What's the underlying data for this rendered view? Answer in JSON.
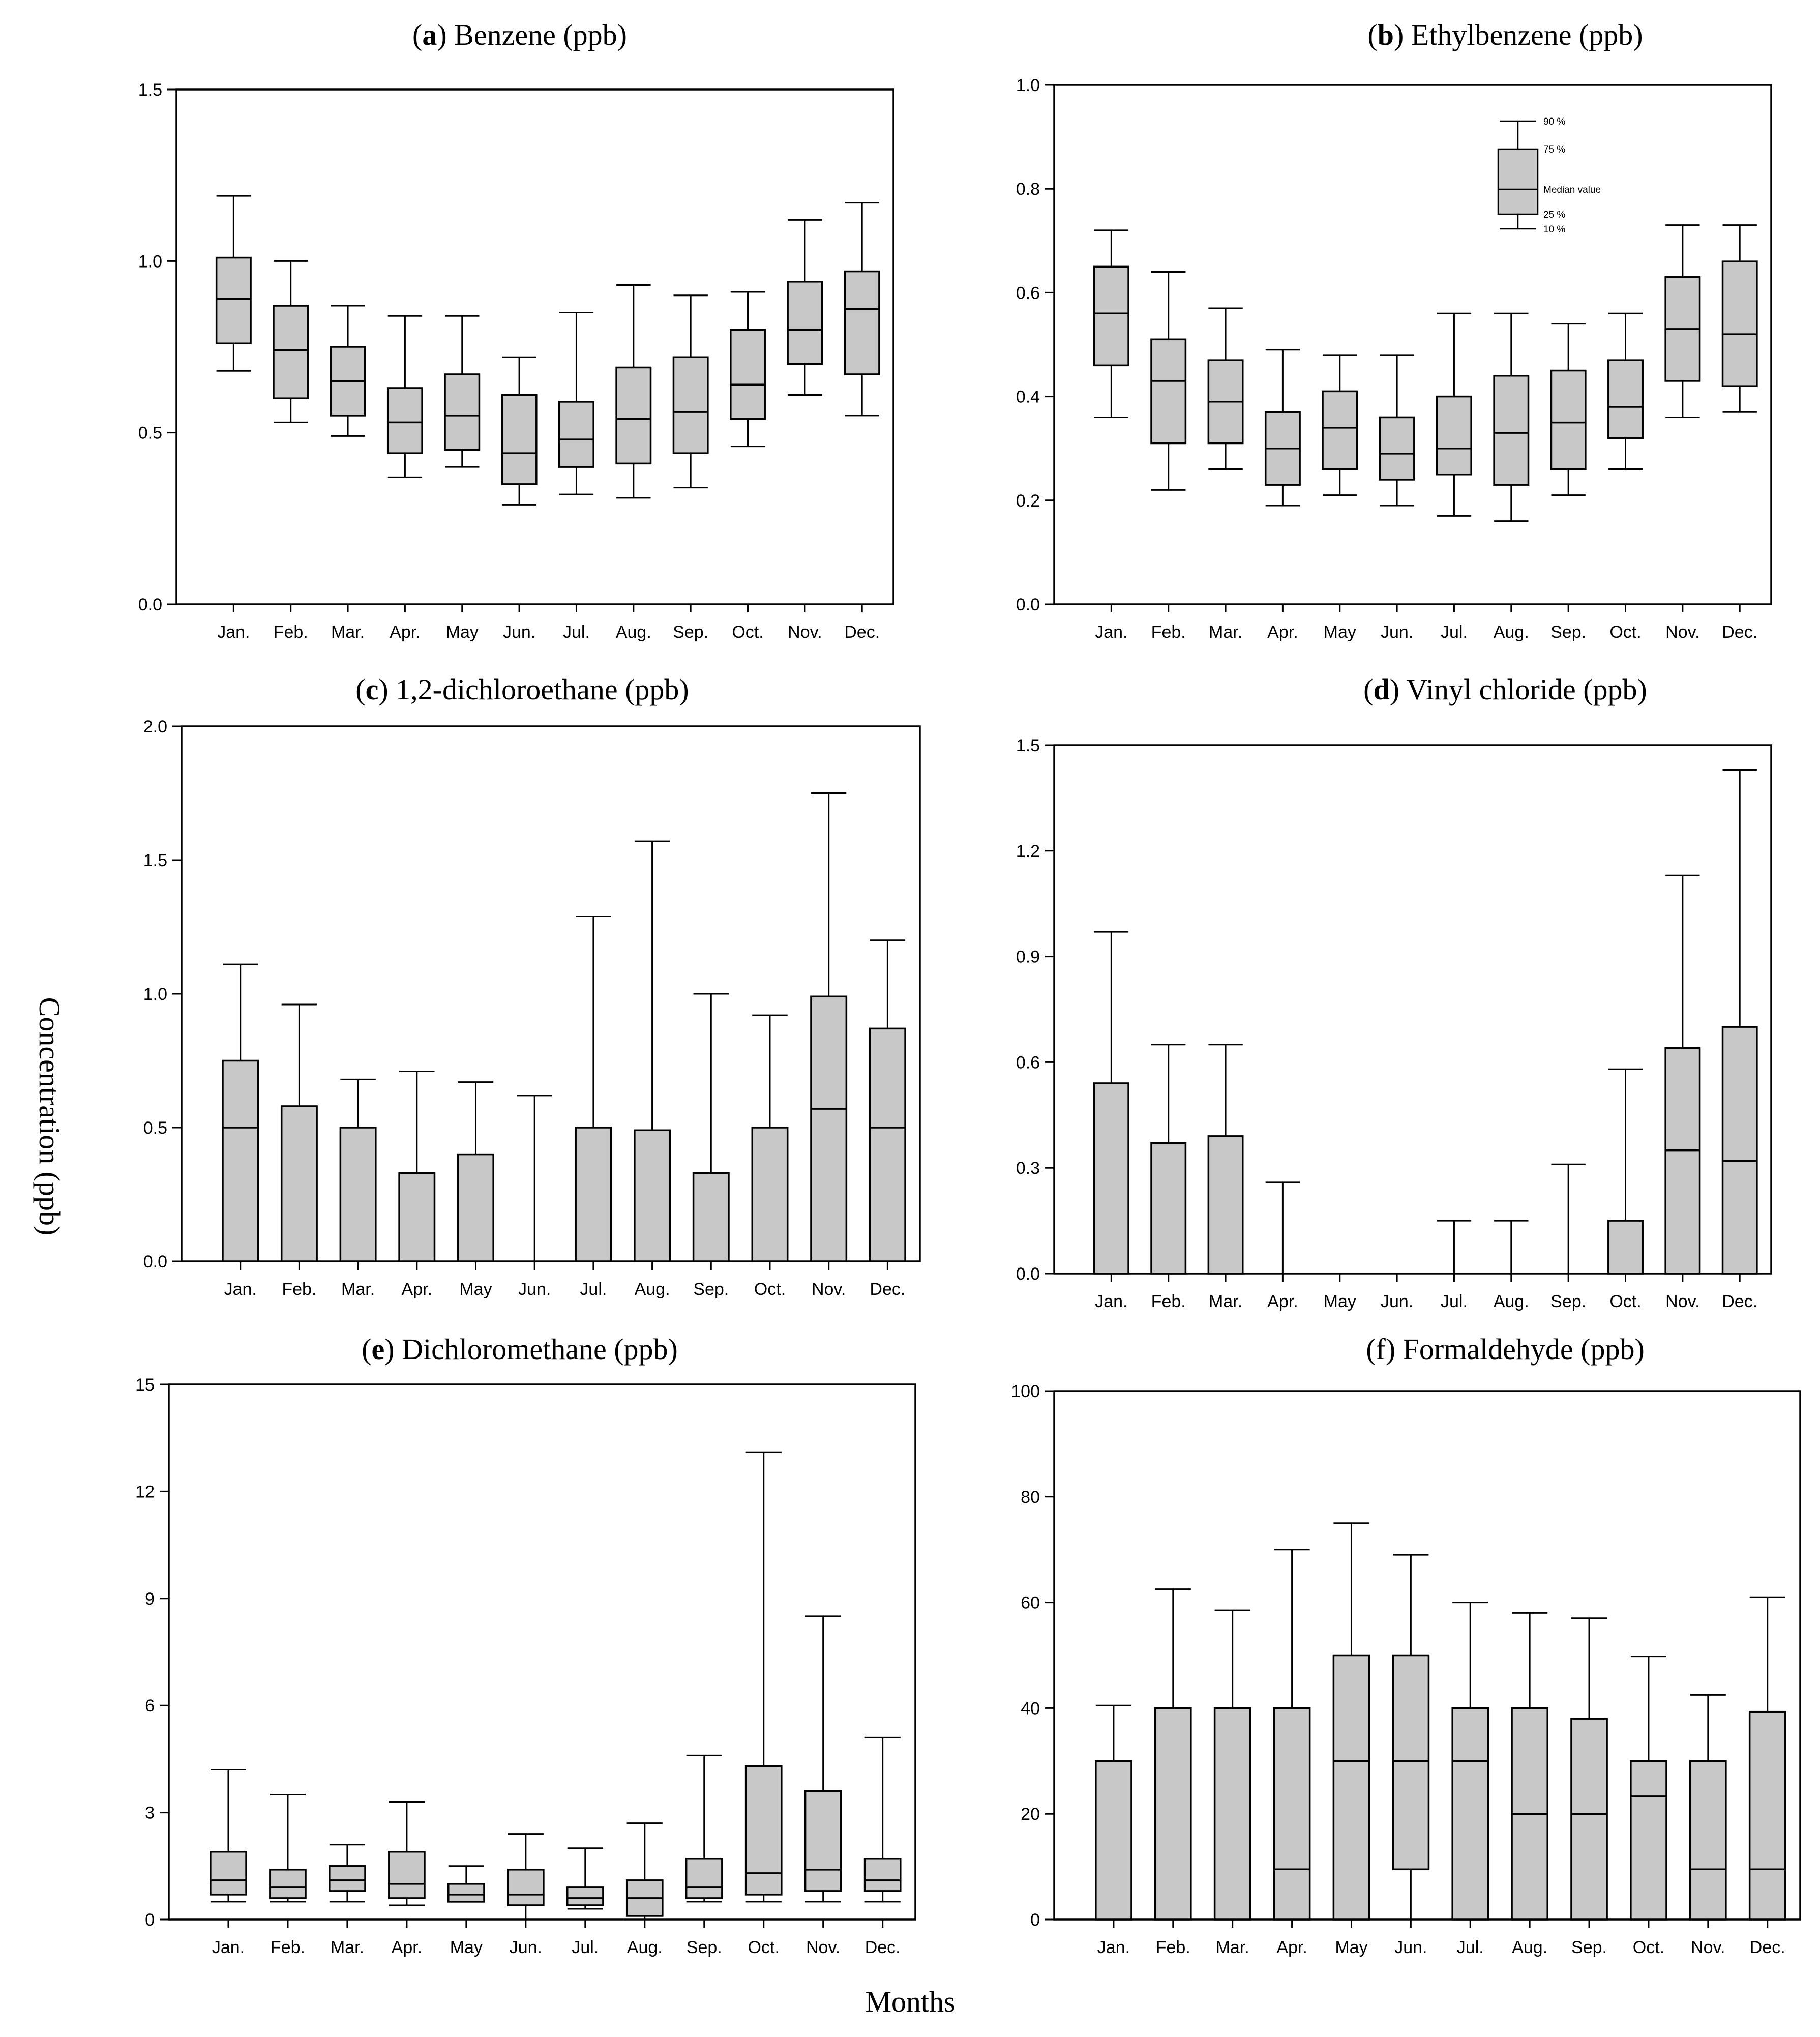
{
  "figure": {
    "ylabel": "Concentration (ppb)",
    "xlabel": "Months"
  },
  "legend": {
    "labels": {
      "p90": "90 %",
      "p75": "75 %",
      "median": "Median value",
      "p25": "25 %",
      "p10": "10 %"
    }
  },
  "colors": {
    "box_fill": "#c8c8c8",
    "line": "#000000",
    "background": "#ffffff"
  },
  "chart_data": [
    {
      "type": "box",
      "panel": "a",
      "title_prefix": "a",
      "title_text": ") Benzene (ppb)",
      "categories": [
        "Jan.",
        "Feb.",
        "Mar.",
        "Apr.",
        "May",
        "Jun.",
        "Jul.",
        "Aug.",
        "Sep.",
        "Oct.",
        "Nov.",
        "Dec."
      ],
      "ylim": [
        0,
        1.5
      ],
      "yticks": [
        "0.0",
        "0.5",
        "1.0",
        "1.5"
      ],
      "grid": false,
      "boxes": [
        {
          "p10": 0.68,
          "p25": 0.76,
          "median": 0.89,
          "p75": 1.01,
          "p90": 1.19
        },
        {
          "p10": 0.53,
          "p25": 0.6,
          "median": 0.74,
          "p75": 0.87,
          "p90": 1.0
        },
        {
          "p10": 0.49,
          "p25": 0.55,
          "median": 0.65,
          "p75": 0.75,
          "p90": 0.87
        },
        {
          "p10": 0.37,
          "p25": 0.44,
          "median": 0.53,
          "p75": 0.63,
          "p90": 0.84
        },
        {
          "p10": 0.4,
          "p25": 0.45,
          "median": 0.55,
          "p75": 0.67,
          "p90": 0.84
        },
        {
          "p10": 0.29,
          "p25": 0.35,
          "median": 0.44,
          "p75": 0.61,
          "p90": 0.72
        },
        {
          "p10": 0.32,
          "p25": 0.4,
          "median": 0.48,
          "p75": 0.59,
          "p90": 0.85
        },
        {
          "p10": 0.31,
          "p25": 0.41,
          "median": 0.54,
          "p75": 0.69,
          "p90": 0.93
        },
        {
          "p10": 0.34,
          "p25": 0.44,
          "median": 0.56,
          "p75": 0.72,
          "p90": 0.9
        },
        {
          "p10": 0.46,
          "p25": 0.54,
          "median": 0.64,
          "p75": 0.8,
          "p90": 0.91
        },
        {
          "p10": 0.61,
          "p25": 0.7,
          "median": 0.8,
          "p75": 0.94,
          "p90": 1.12
        },
        {
          "p10": 0.55,
          "p25": 0.67,
          "median": 0.86,
          "p75": 0.97,
          "p90": 1.17
        }
      ]
    },
    {
      "type": "box",
      "panel": "b",
      "title_prefix": "b",
      "title_text": ") Ethylbenzene (ppb)",
      "categories": [
        "Jan.",
        "Feb.",
        "Mar.",
        "Apr.",
        "May",
        "Jun.",
        "Jul.",
        "Aug.",
        "Sep.",
        "Oct.",
        "Nov.",
        "Dec."
      ],
      "ylim": [
        0,
        1.0
      ],
      "yticks": [
        "0.0",
        "0.2",
        "0.4",
        "0.6",
        "0.8",
        "1.0"
      ],
      "grid": false,
      "has_legend": true,
      "boxes": [
        {
          "p10": 0.36,
          "p25": 0.46,
          "median": 0.56,
          "p75": 0.65,
          "p90": 0.72
        },
        {
          "p10": 0.22,
          "p25": 0.31,
          "median": 0.43,
          "p75": 0.51,
          "p90": 0.64
        },
        {
          "p10": 0.26,
          "p25": 0.31,
          "median": 0.39,
          "p75": 0.47,
          "p90": 0.57
        },
        {
          "p10": 0.19,
          "p25": 0.23,
          "median": 0.3,
          "p75": 0.37,
          "p90": 0.49
        },
        {
          "p10": 0.21,
          "p25": 0.26,
          "median": 0.34,
          "p75": 0.41,
          "p90": 0.48
        },
        {
          "p10": 0.19,
          "p25": 0.24,
          "median": 0.29,
          "p75": 0.36,
          "p90": 0.48
        },
        {
          "p10": 0.17,
          "p25": 0.25,
          "median": 0.3,
          "p75": 0.4,
          "p90": 0.56
        },
        {
          "p10": 0.16,
          "p25": 0.23,
          "median": 0.33,
          "p75": 0.44,
          "p90": 0.56
        },
        {
          "p10": 0.21,
          "p25": 0.26,
          "median": 0.35,
          "p75": 0.45,
          "p90": 0.54
        },
        {
          "p10": 0.26,
          "p25": 0.32,
          "median": 0.38,
          "p75": 0.47,
          "p90": 0.56
        },
        {
          "p10": 0.36,
          "p25": 0.43,
          "median": 0.53,
          "p75": 0.63,
          "p90": 0.73
        },
        {
          "p10": 0.37,
          "p25": 0.42,
          "median": 0.52,
          "p75": 0.66,
          "p90": 0.73
        }
      ]
    },
    {
      "type": "box",
      "panel": "c",
      "title_prefix": "c",
      "title_text": ") 1,2-dichloroethane (ppb)",
      "categories": [
        "Jan.",
        "Feb.",
        "Mar.",
        "Apr.",
        "May",
        "Jun.",
        "Jul.",
        "Aug.",
        "Sep.",
        "Oct.",
        "Nov.",
        "Dec."
      ],
      "ylim": [
        0,
        2.0
      ],
      "yticks": [
        "0.0",
        "0.5",
        "1.0",
        "1.5",
        "2.0"
      ],
      "grid": false,
      "boxes": [
        {
          "p10": 0,
          "p25": 0,
          "median": 0.5,
          "p75": 0.75,
          "p90": 1.11
        },
        {
          "p10": 0,
          "p25": 0,
          "median": 0.0,
          "p75": 0.58,
          "p90": 0.96
        },
        {
          "p10": 0,
          "p25": 0,
          "median": 0.0,
          "p75": 0.5,
          "p90": 0.68
        },
        {
          "p10": 0,
          "p25": 0,
          "median": 0.0,
          "p75": 0.33,
          "p90": 0.71
        },
        {
          "p10": 0,
          "p25": 0,
          "median": 0.0,
          "p75": 0.4,
          "p90": 0.67
        },
        {
          "p10": 0,
          "p25": 0,
          "median": 0.0,
          "p75": 0.0,
          "p90": 0.62
        },
        {
          "p10": 0,
          "p25": 0,
          "median": 0.0,
          "p75": 0.5,
          "p90": 1.29
        },
        {
          "p10": 0,
          "p25": 0,
          "median": 0.0,
          "p75": 0.49,
          "p90": 1.57
        },
        {
          "p10": 0,
          "p25": 0,
          "median": 0.0,
          "p75": 0.33,
          "p90": 1.0
        },
        {
          "p10": 0,
          "p25": 0,
          "median": 0.0,
          "p75": 0.5,
          "p90": 0.92
        },
        {
          "p10": 0,
          "p25": 0,
          "median": 0.57,
          "p75": 0.99,
          "p90": 1.75
        },
        {
          "p10": 0,
          "p25": 0,
          "median": 0.5,
          "p75": 0.87,
          "p90": 1.2
        }
      ]
    },
    {
      "type": "box",
      "panel": "d",
      "title_prefix": "d",
      "title_text": ") Vinyl chloride (ppb)",
      "categories": [
        "Jan.",
        "Feb.",
        "Mar.",
        "Apr.",
        "May",
        "Jun.",
        "Jul.",
        "Aug.",
        "Sep.",
        "Oct.",
        "Nov.",
        "Dec."
      ],
      "ylim": [
        0,
        1.5
      ],
      "yticks": [
        "0.0",
        "0.3",
        "0.6",
        "0.9",
        "1.2",
        "1.5"
      ],
      "grid": false,
      "boxes": [
        {
          "p10": 0,
          "p25": 0,
          "median": 0.0,
          "p75": 0.54,
          "p90": 0.97
        },
        {
          "p10": 0,
          "p25": 0,
          "median": 0.0,
          "p75": 0.37,
          "p90": 0.65
        },
        {
          "p10": 0,
          "p25": 0,
          "median": 0.0,
          "p75": 0.39,
          "p90": 0.65
        },
        {
          "p10": 0,
          "p25": 0,
          "median": 0.0,
          "p75": 0.0,
          "p90": 0.26
        },
        {
          "p10": 0,
          "p25": 0,
          "median": 0.0,
          "p75": 0.0,
          "p90": 0.0
        },
        {
          "p10": 0,
          "p25": 0,
          "median": 0.0,
          "p75": 0.0,
          "p90": 0.0
        },
        {
          "p10": 0,
          "p25": 0,
          "median": 0.0,
          "p75": 0.0,
          "p90": 0.15
        },
        {
          "p10": 0,
          "p25": 0,
          "median": 0.0,
          "p75": 0.0,
          "p90": 0.15
        },
        {
          "p10": 0,
          "p25": 0,
          "median": 0.0,
          "p75": 0.0,
          "p90": 0.31
        },
        {
          "p10": 0,
          "p25": 0,
          "median": 0.0,
          "p75": 0.15,
          "p90": 0.58
        },
        {
          "p10": 0,
          "p25": 0,
          "median": 0.35,
          "p75": 0.64,
          "p90": 1.13
        },
        {
          "p10": 0,
          "p25": 0,
          "median": 0.32,
          "p75": 0.7,
          "p90": 1.43
        }
      ]
    },
    {
      "type": "box",
      "panel": "e",
      "title_prefix": "e",
      "title_text": ") Dichloromethane (ppb)",
      "categories": [
        "Jan.",
        "Feb.",
        "Mar.",
        "Apr.",
        "May",
        "Jun.",
        "Jul.",
        "Aug.",
        "Sep.",
        "Oct.",
        "Nov.",
        "Dec."
      ],
      "ylim": [
        0,
        15
      ],
      "yticks": [
        "0",
        "3",
        "6",
        "9",
        "12",
        "15"
      ],
      "grid": false,
      "boxes": [
        {
          "p10": 0.5,
          "p25": 0.7,
          "median": 1.1,
          "p75": 1.9,
          "p90": 4.2
        },
        {
          "p10": 0.5,
          "p25": 0.6,
          "median": 0.9,
          "p75": 1.4,
          "p90": 3.5
        },
        {
          "p10": 0.5,
          "p25": 0.8,
          "median": 1.1,
          "p75": 1.5,
          "p90": 2.1
        },
        {
          "p10": 0.4,
          "p25": 0.6,
          "median": 1.0,
          "p75": 1.9,
          "p90": 3.3
        },
        {
          "p10": 0.5,
          "p25": 0.5,
          "median": 0.7,
          "p75": 1.0,
          "p90": 1.5
        },
        {
          "p10": 0.0,
          "p25": 0.4,
          "median": 0.7,
          "p75": 1.4,
          "p90": 2.4
        },
        {
          "p10": 0.3,
          "p25": 0.4,
          "median": 0.6,
          "p75": 0.9,
          "p90": 2.0
        },
        {
          "p10": 0.0,
          "p25": 0.1,
          "median": 0.6,
          "p75": 1.1,
          "p90": 2.7
        },
        {
          "p10": 0.5,
          "p25": 0.6,
          "median": 0.9,
          "p75": 1.7,
          "p90": 4.6
        },
        {
          "p10": 0.5,
          "p25": 0.7,
          "median": 1.3,
          "p75": 4.3,
          "p90": 13.1
        },
        {
          "p10": 0.5,
          "p25": 0.8,
          "median": 1.4,
          "p75": 3.6,
          "p90": 8.5
        },
        {
          "p10": 0.5,
          "p25": 0.8,
          "median": 1.1,
          "p75": 1.7,
          "p90": 5.1
        }
      ]
    },
    {
      "type": "box",
      "panel": "f",
      "title_prefix": "",
      "title_text": "(f) Formaldehyde (ppb)",
      "categories": [
        "Jan.",
        "Feb.",
        "Mar.",
        "Apr.",
        "May",
        "Jun.",
        "Jul.",
        "Aug.",
        "Sep.",
        "Oct.",
        "Nov.",
        "Dec."
      ],
      "ylim": [
        0,
        100
      ],
      "yticks": [
        "0",
        "20",
        "40",
        "60",
        "80",
        "100"
      ],
      "grid": false,
      "boxes": [
        {
          "p10": 0,
          "p25": 0,
          "median": 0.0,
          "p75": 30,
          "p90": 40.5
        },
        {
          "p10": 0,
          "p25": 0,
          "median": 0.0,
          "p75": 40,
          "p90": 62.5
        },
        {
          "p10": 0,
          "p25": 0,
          "median": 0.0,
          "p75": 40,
          "p90": 58.5
        },
        {
          "p10": 0,
          "p25": 0,
          "median": 9.5,
          "p75": 40,
          "p90": 70
        },
        {
          "p10": 0,
          "p25": 0,
          "median": 30,
          "p75": 50,
          "p90": 75
        },
        {
          "p10": 0,
          "p25": 9.5,
          "median": 30,
          "p75": 50,
          "p90": 69
        },
        {
          "p10": 0,
          "p25": 0,
          "median": 30,
          "p75": 40,
          "p90": 60
        },
        {
          "p10": 0,
          "p25": 0,
          "median": 20,
          "p75": 40,
          "p90": 58
        },
        {
          "p10": 0,
          "p25": 0,
          "median": 20,
          "p75": 38,
          "p90": 57
        },
        {
          "p10": 0,
          "p25": 0,
          "median": 23.3,
          "p75": 30,
          "p90": 49.8
        },
        {
          "p10": 0,
          "p25": 0,
          "median": 9.5,
          "p75": 30,
          "p90": 42.5
        },
        {
          "p10": 0,
          "p25": 0,
          "median": 9.5,
          "p75": 39.3,
          "p90": 61
        }
      ]
    }
  ]
}
